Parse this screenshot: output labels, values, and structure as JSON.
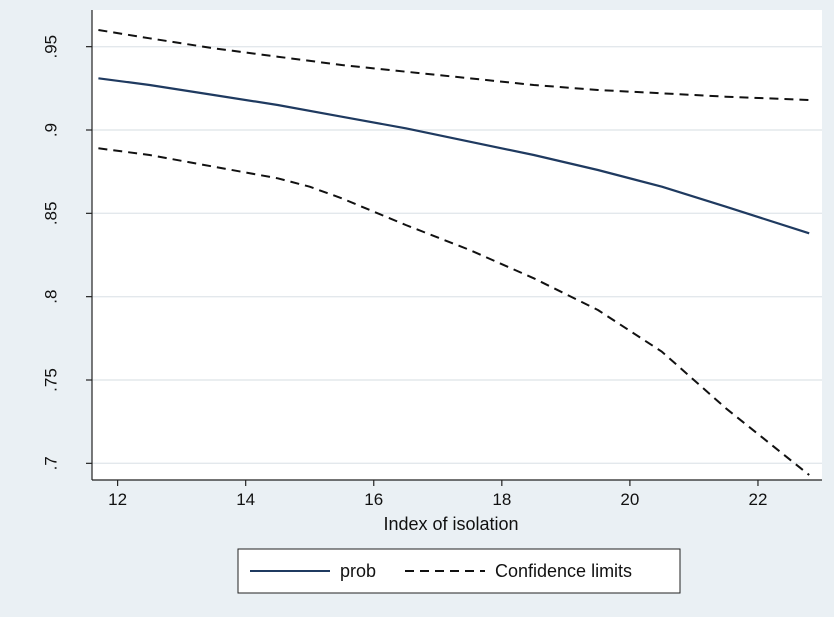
{
  "chart_data": {
    "type": "line",
    "title": "",
    "xlabel": "Index of isolation",
    "ylabel": "",
    "xlim": [
      11.6,
      23.0
    ],
    "ylim": [
      0.69,
      0.972
    ],
    "xticks": [
      12,
      14,
      16,
      18,
      20,
      22
    ],
    "xtick_labels": [
      "12",
      "14",
      "16",
      "18",
      "20",
      "22"
    ],
    "yticks": [
      0.7,
      0.75,
      0.8,
      0.85,
      0.9,
      0.95
    ],
    "ytick_labels": [
      ".7",
      ".75",
      ".8",
      ".85",
      ".9",
      ".95"
    ],
    "grid": "horizontal",
    "legend_position": "bottom",
    "series": [
      {
        "name": "prob",
        "style": "solid",
        "color": "#1f3a60",
        "x": [
          11.7,
          12.5,
          13.5,
          14.5,
          15.5,
          16.5,
          17.5,
          18.5,
          19.5,
          20.5,
          21.5,
          22.8
        ],
        "y": [
          0.931,
          0.927,
          0.921,
          0.915,
          0.908,
          0.901,
          0.893,
          0.885,
          0.876,
          0.866,
          0.854,
          0.838
        ]
      },
      {
        "name": "Confidence limits",
        "style": "dashed",
        "color": "#111111",
        "x": [
          11.7,
          12.5,
          13.5,
          14.5,
          15.5,
          16.5,
          17.5,
          18.5,
          19.5,
          20.5,
          21.5,
          22.8
        ],
        "y": [
          0.96,
          0.955,
          0.949,
          0.944,
          0.939,
          0.935,
          0.931,
          0.927,
          0.924,
          0.922,
          0.92,
          0.918
        ]
      },
      {
        "name": "",
        "style": "dashed",
        "color": "#111111",
        "x": [
          11.7,
          12.5,
          13.5,
          14.5,
          15.0,
          15.5,
          16.5,
          17.5,
          18.5,
          19.5,
          20.5,
          21.5,
          22.8
        ],
        "y": [
          0.889,
          0.885,
          0.878,
          0.871,
          0.866,
          0.859,
          0.843,
          0.828,
          0.811,
          0.792,
          0.767,
          0.733,
          0.693
        ]
      }
    ],
    "legend": [
      {
        "label": "prob",
        "style": "solid",
        "color": "#1f3a60"
      },
      {
        "label": "Confidence limits",
        "style": "dashed",
        "color": "#111111"
      }
    ],
    "colors": {
      "background": "#eaf0f4",
      "plot_background": "#ffffff",
      "grid": "#e3e8ec",
      "axis": "#222222"
    }
  }
}
